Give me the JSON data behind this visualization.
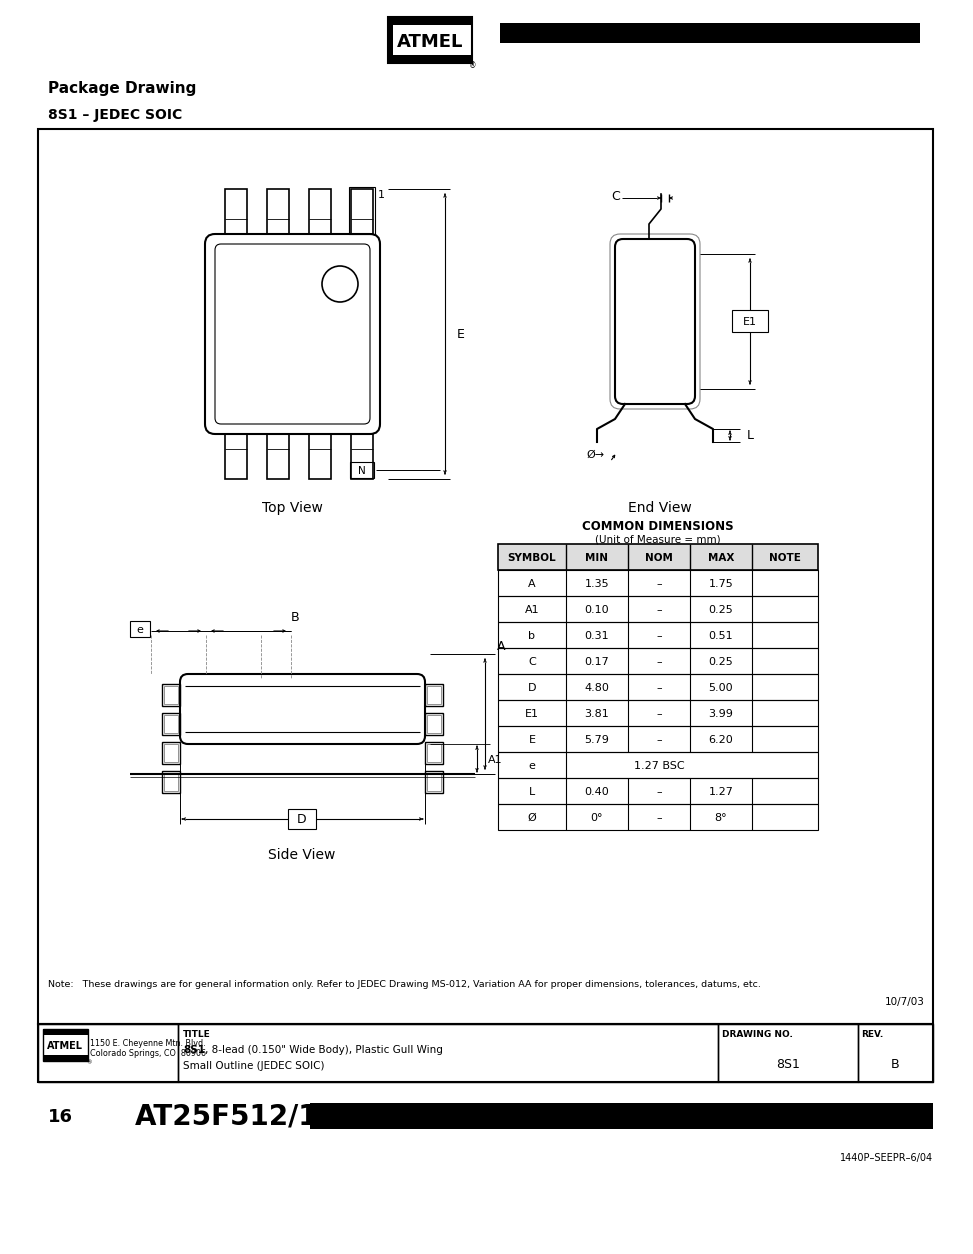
{
  "title": "Package Drawing",
  "subtitle": "8S1 – JEDEC SOIC",
  "table_header": [
    "SYMBOL",
    "MIN",
    "NOM",
    "MAX",
    "NOTE"
  ],
  "table_rows": [
    [
      "A",
      "1.35",
      "–",
      "1.75",
      ""
    ],
    [
      "A1",
      "0.10",
      "–",
      "0.25",
      ""
    ],
    [
      "b",
      "0.31",
      "–",
      "0.51",
      ""
    ],
    [
      "C",
      "0.17",
      "–",
      "0.25",
      ""
    ],
    [
      "D",
      "4.80",
      "–",
      "5.00",
      ""
    ],
    [
      "E1",
      "3.81",
      "–",
      "3.99",
      ""
    ],
    [
      "E",
      "5.79",
      "–",
      "6.20",
      ""
    ],
    [
      "e",
      "1.27 BSC",
      "",
      "",
      ""
    ],
    [
      "L",
      "0.40",
      "–",
      "1.27",
      ""
    ],
    [
      "Ø",
      "0°",
      "–",
      "8°",
      ""
    ]
  ],
  "common_dim_title": "COMMON DIMENSIONS",
  "common_dim_sub": "(Unit of Measure = mm)",
  "top_view_label": "Top View",
  "end_view_label": "End View",
  "side_view_label": "Side View",
  "note_text": "Note:   These drawings are for general information only. Refer to JEDEC Drawing MS-012, Variation AA for proper dimensions, tolerances, datums, etc.",
  "date_text": "10/7/03",
  "footer_address": "1150 E. Cheyenne Mtn. Blvd.\nColorado Springs, CO  80906",
  "footer_title_label": "TITLE",
  "footer_title_text": "8S1, 8-lead (0.150\" Wide Body), Plastic Gull Wing\nSmall Outline (JEDEC SOIC)",
  "footer_drawing_no_label": "DRAWING NO.",
  "footer_drawing_no": "8S1",
  "footer_rev_label": "REV.",
  "footer_rev": "B",
  "bottom_page_num": "16",
  "bottom_product": "AT25F512/1024",
  "bottom_part_num": "1440P–SEEPR–6/04"
}
